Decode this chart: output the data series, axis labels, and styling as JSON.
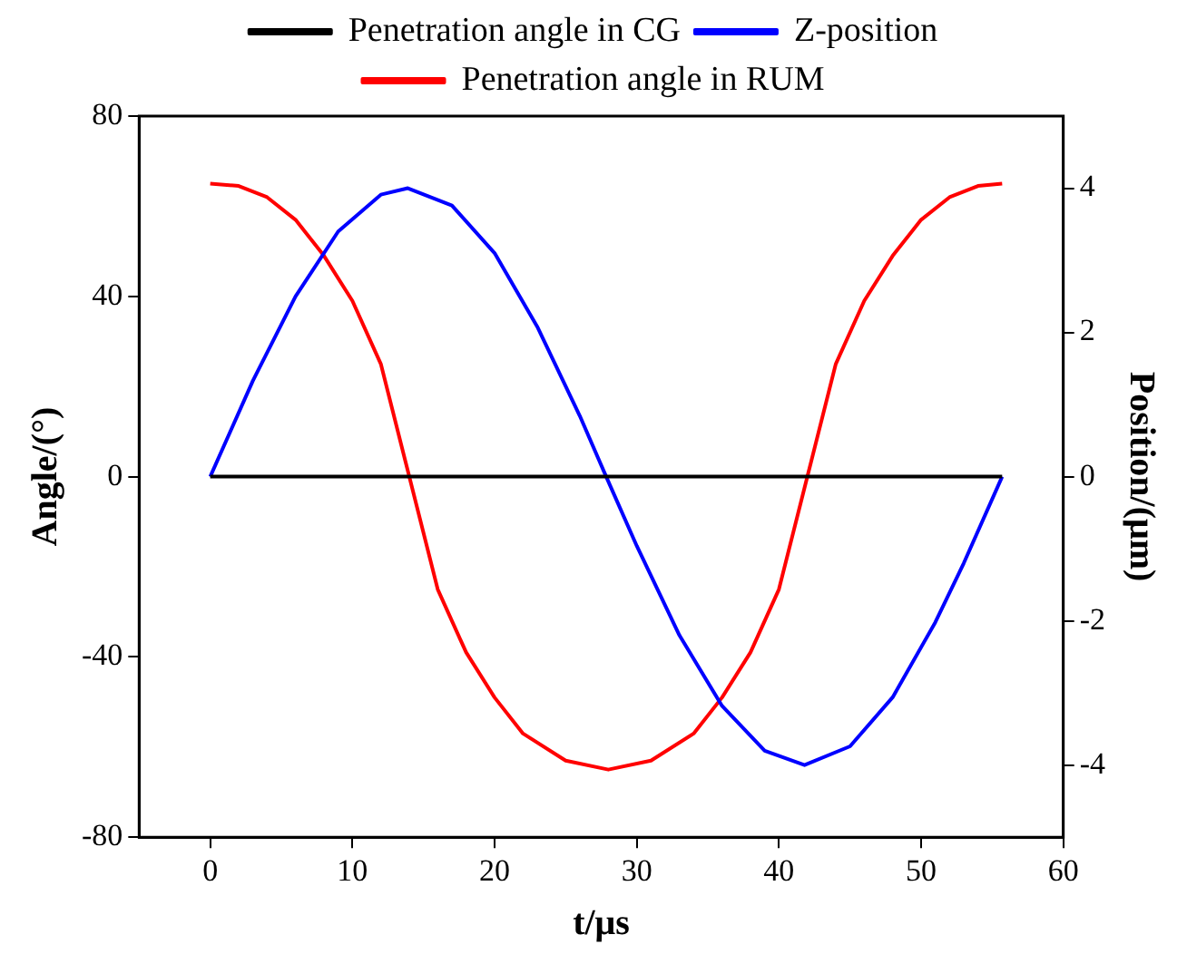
{
  "chart_data": {
    "type": "line",
    "xlabel": "t/μs",
    "ylabel": "Angle/(°)",
    "y2label": "Position/(μm)",
    "xlim": [
      -5,
      60
    ],
    "xticks": [
      0,
      10,
      20,
      30,
      40,
      50,
      60
    ],
    "ylim": [
      -80,
      80
    ],
    "yticks": [
      -80,
      -40,
      0,
      40,
      80
    ],
    "y2lim": [
      -5,
      5
    ],
    "y2ticks": [
      -4,
      -2,
      0,
      2,
      4
    ],
    "grid": false,
    "legend": "top",
    "marker": "none",
    "line_style": "solid",
    "series": [
      {
        "name": "Penetration angle in CG",
        "color": "#000000",
        "x": [
          0,
          55.7
        ],
        "values": [
          0,
          0
        ]
      },
      {
        "name": "Z-position",
        "color": "#0000ff",
        "axis": "y2",
        "x": [
          0,
          3,
          6,
          9,
          12,
          13.9,
          17,
          20,
          23,
          26,
          27.85,
          30,
          33,
          36,
          39,
          41.8,
          45,
          48,
          51,
          53,
          55.7
        ],
        "values": [
          0,
          1.33,
          2.5,
          3.4,
          3.91,
          4,
          3.76,
          3.1,
          2.08,
          0.84,
          0,
          -0.96,
          -2.2,
          -3.18,
          -3.8,
          -4,
          -3.74,
          -3.06,
          -2.02,
          -1.2,
          0
        ]
      },
      {
        "name": "Penetration angle in RUM",
        "color": "#ff0000",
        "x": [
          0,
          2,
          4,
          6,
          8,
          10,
          12,
          14,
          16,
          18,
          20,
          22,
          25,
          28,
          31,
          34,
          36,
          38,
          40,
          42,
          44,
          46,
          48,
          50,
          52,
          54,
          55.7
        ],
        "values": [
          65,
          64.5,
          62,
          57,
          49,
          39,
          25,
          0,
          -25,
          -39,
          -49,
          -57,
          -63,
          -65,
          -63,
          -57,
          -49,
          -39,
          -25,
          0,
          25,
          39,
          49,
          57,
          62,
          64.5,
          65
        ]
      }
    ]
  }
}
